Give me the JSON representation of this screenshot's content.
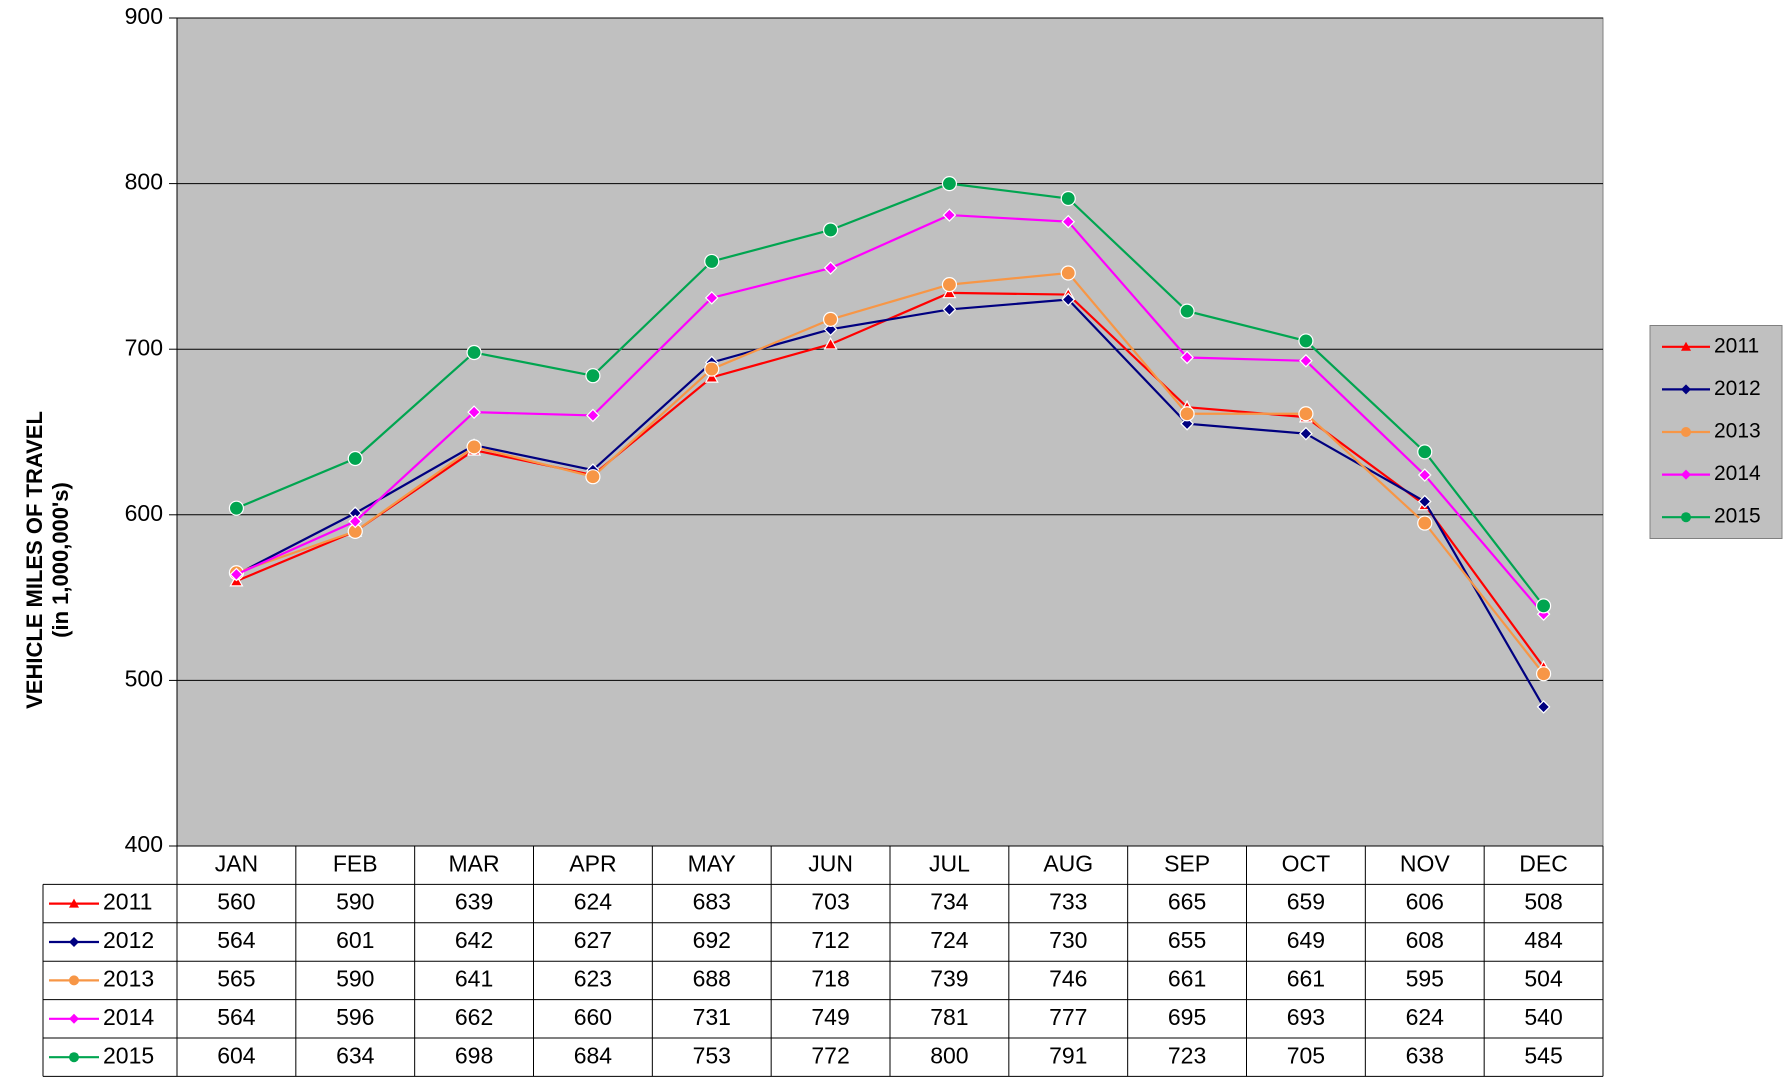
{
  "chart_data": {
    "type": "line",
    "y_label": [
      "VEHICLE MILES OF TRAVEL",
      "(in 1,000,000's)"
    ],
    "categories": [
      "JAN",
      "FEB",
      "MAR",
      "APR",
      "MAY",
      "JUN",
      "JUL",
      "AUG",
      "SEP",
      "OCT",
      "NOV",
      "DEC"
    ],
    "series": [
      {
        "name": "2011",
        "color": "#ff0000",
        "marker": "triangle",
        "values": [
          560,
          590,
          639,
          624,
          683,
          703,
          734,
          733,
          665,
          659,
          606,
          508
        ]
      },
      {
        "name": "2012",
        "color": "#000080",
        "marker": "diamond",
        "values": [
          564,
          601,
          642,
          627,
          692,
          712,
          724,
          730,
          655,
          649,
          608,
          484
        ]
      },
      {
        "name": "2013",
        "color": "#f79646",
        "marker": "circle",
        "values": [
          565,
          590,
          641,
          623,
          688,
          718,
          739,
          746,
          661,
          661,
          595,
          504
        ]
      },
      {
        "name": "2014",
        "color": "#ff00ff",
        "marker": "diamond",
        "values": [
          564,
          596,
          662,
          660,
          731,
          749,
          781,
          777,
          695,
          693,
          624,
          540
        ]
      },
      {
        "name": "2015",
        "color": "#00a550",
        "marker": "circle",
        "values": [
          604,
          634,
          698,
          684,
          753,
          772,
          800,
          791,
          723,
          705,
          638,
          545
        ]
      }
    ],
    "ylim": [
      400,
      900
    ],
    "yticks": [
      400,
      500,
      600,
      700,
      800,
      900
    ],
    "grid": true,
    "legend": "right",
    "data_table": true
  }
}
